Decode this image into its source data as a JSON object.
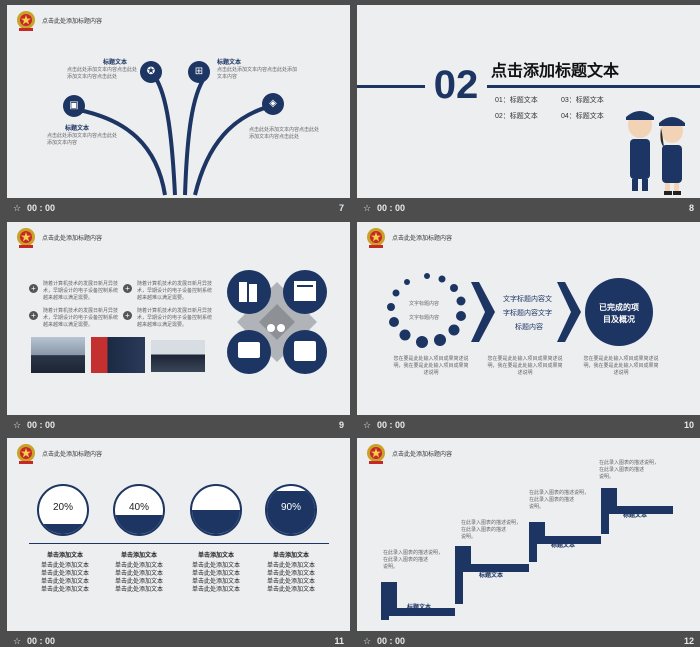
{
  "common": {
    "header_title": "点击此处添加标题内容",
    "star": "☆",
    "time": "00 : 00"
  },
  "slide7": {
    "number": "7",
    "items": [
      {
        "title": "标题文本",
        "desc": "点击此处添加文本内容点击此处添加文本内容点击此处"
      },
      {
        "title": "标题文本",
        "desc": "点击此处添加文本内容点击此处添加文本内容"
      },
      {
        "title": "标题文本",
        "desc": "点击此处添加文本内容点击此处添加文本内容"
      },
      {
        "title": "标题文本",
        "desc": "点击此处添加文本内容点击此处添加文本内容点击此处"
      }
    ]
  },
  "slide8": {
    "number": "8",
    "big_num": "02",
    "title": "点击添加标题文本",
    "toc": [
      "01：标题文本",
      "03：标题文本",
      "02：标题文本",
      "04：标题文本"
    ]
  },
  "slide9": {
    "number": "9",
    "bullets": [
      "随着计算机技术的发展日新月异技术，早期设计的电子设备控制系统越来越难以满足需要。",
      "随着计算机技术的发展日新月异技术，早期设计的电子设备控制系统越来越难以满足需要。",
      "随着计算机技术的发展日新月异技术，早期设计的电子设备控制系统越来越难以满足需要。",
      "随着计算机技术的发展日新月异技术，早期设计的电子设备控制系统越来越难以满足需要。"
    ]
  },
  "slide10": {
    "number": "10",
    "ring_labels": [
      "文字标题内容",
      "文字标题内容"
    ],
    "middle_text": [
      "文字标题内容文",
      "字标题内容文字",
      "标题内容"
    ],
    "circle_text": [
      "已完成的项",
      "目及概况"
    ],
    "bottom_desc": [
      "您在要是此处输入项目成果简述说明，我在要是此处输入项目成果简述说明",
      "您在要是此处输入项目成果简述说明，我在要是此处输入项目成果简述说明",
      "您在要是此处输入项目成果简述说明，我在要是此处输入项目成果简述说明"
    ]
  },
  "slide11": {
    "number": "11",
    "gauges": [
      {
        "label": "20%",
        "fill": 0.2,
        "title": "单击添加文本",
        "lines": [
          "单击此处添加文本",
          "单击此处添加文本",
          "单击此处添加文本",
          "单击此处添加文本"
        ]
      },
      {
        "label": "40%",
        "fill": 0.4,
        "title": "单击添加文本",
        "lines": [
          "单击此处添加文本",
          "单击此处添加文本",
          "单击此处添加文本",
          "单击此处添加文本"
        ]
      },
      {
        "label": "50%",
        "fill": 0.5,
        "title": "单击添加文本",
        "lines": [
          "单击此处添加文本",
          "单击此处添加文本",
          "单击此处添加文本",
          "单击此处添加文本"
        ]
      },
      {
        "label": "90%",
        "fill": 0.9,
        "title": "单击添加文本",
        "lines": [
          "单击此处添加文本",
          "单击此处添加文本",
          "单击此处添加文本",
          "单击此处添加文本"
        ]
      }
    ]
  },
  "slide12": {
    "number": "12",
    "steps": [
      {
        "title": "标题文本",
        "desc": [
          "在此录入图表的描述说明，",
          "在此录入图表的描述",
          "说明。"
        ]
      },
      {
        "title": "标题文本",
        "desc": [
          "在此录入图表的描述说明，",
          "在此录入图表的描述",
          "说明。"
        ]
      },
      {
        "title": "标题文本",
        "desc": [
          "在此录入图表的描述说明，",
          "在此录入图表的描述",
          "说明。"
        ]
      },
      {
        "title": "标题文本",
        "desc": [
          "在此录入图表的描述说明，",
          "在此录入图表的描述",
          "说明。"
        ]
      }
    ]
  }
}
